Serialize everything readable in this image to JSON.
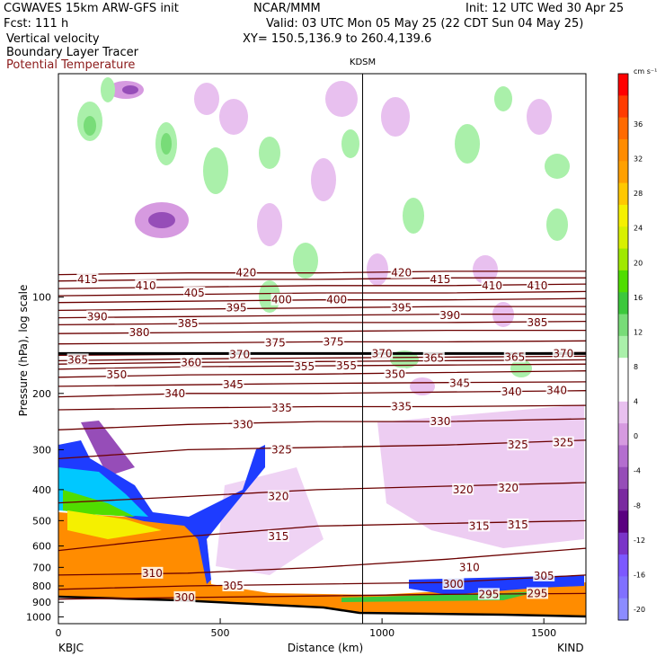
{
  "header": {
    "model": "CGWAVES 15km ARW-GFS init",
    "org": "NCAR/MMM",
    "init": "Init: 12 UTC Wed 30 Apr 25",
    "fcst": "Fcst:  111 h",
    "valid": "Valid: 03 UTC Mon 05 May 25 (22 CDT Sun 04 May 25)",
    "field1": "Vertical velocity",
    "field2": "Boundary Layer Tracer",
    "field3": "Potential Temperature",
    "xy": "XY= 150.5,136.9 to 260.4,139.6",
    "field3_color": "#8b1a1a"
  },
  "chart_data": {
    "type": "heatmap",
    "title": "",
    "xlabel": "Distance (km)",
    "ylabel": "Pressure (hPa), log scale",
    "xlim": [
      0,
      1630
    ],
    "ylim": [
      1050,
      20
    ],
    "x_ticks": [
      "0",
      "500",
      "1000",
      "1500"
    ],
    "x_tick_values": [
      0,
      500,
      1000,
      1500
    ],
    "y_ticks": [
      "100",
      "200",
      "300",
      "400",
      "500",
      "600",
      "700",
      "800",
      "900",
      "1000"
    ],
    "y_tick_values": [
      100,
      200,
      300,
      400,
      500,
      600,
      700,
      800,
      900,
      1000
    ],
    "station_left": "KBJC",
    "station_right": "KIND",
    "station_mid": "KDSM",
    "station_mid_x": 940,
    "colorbar": {
      "unit": "cm s⁻¹",
      "labels": [
        "36",
        "32",
        "28",
        "24",
        "20",
        "16",
        "12",
        "8",
        "4",
        "0",
        "-4",
        "-8",
        "-12",
        "-16",
        "-20"
      ],
      "colors": [
        "#ff0000",
        "#ff3c00",
        "#ff6a00",
        "#ff8c00",
        "#ffa000",
        "#ffc800",
        "#f5f000",
        "#d8f000",
        "#a0e800",
        "#50dd00",
        "#3cc83c",
        "#78dc78",
        "#aaf0aa",
        "#ffffff",
        "#ffffff",
        "#e8c0ef",
        "#d69ae0",
        "#b46ecf",
        "#964db8",
        "#7a2aa0",
        "#5a0080",
        "#7a34c8",
        "#7c58ff",
        "#8070ff",
        "#8c8cff"
      ]
    },
    "theta_contours": {
      "unit": "K",
      "levels": [
        {
          "value": 300,
          "p": [
            880,
            870,
            860,
            850,
            845
          ]
        },
        {
          "value": 305,
          "p": [
            820,
            800,
            790,
            780,
            740
          ]
        },
        {
          "value": 310,
          "p": [
            740,
            730,
            700,
            660,
            610
          ]
        },
        {
          "value": 315,
          "p": [
            620,
            560,
            520,
            510,
            500
          ]
        },
        {
          "value": 320,
          "p": [
            440,
            420,
            400,
            390,
            380
          ]
        },
        {
          "value": 325,
          "p": [
            320,
            300,
            295,
            290,
            280
          ]
        },
        {
          "value": 330,
          "p": [
            260,
            250,
            245,
            245,
            240
          ]
        },
        {
          "value": 335,
          "p": [
            225,
            222,
            220,
            220,
            218
          ]
        },
        {
          "value": 340,
          "p": [
            205,
            200,
            200,
            198,
            196
          ]
        },
        {
          "value": 345,
          "p": [
            190,
            188,
            186,
            185,
            184
          ]
        },
        {
          "value": 350,
          "p": [
            178,
            175,
            174,
            172,
            170
          ]
        },
        {
          "value": 355,
          "p": [
            168,
            165,
            164,
            163,
            162
          ]
        },
        {
          "value": 360,
          "p": [
            162,
            160,
            159,
            158,
            157
          ]
        },
        {
          "value": 365,
          "p": [
            158,
            156,
            155,
            154,
            153
          ]
        },
        {
          "value": 370,
          "p": [
            152,
            151,
            150,
            150,
            149
          ]
        },
        {
          "value": 375,
          "p": [
            140,
            139,
            138,
            138,
            137
          ]
        },
        {
          "value": 380,
          "p": [
            130,
            129,
            128,
            127,
            127
          ]
        },
        {
          "value": 385,
          "p": [
            122,
            121,
            120,
            120,
            119
          ]
        },
        {
          "value": 390,
          "p": [
            116,
            115,
            114,
            113,
            113
          ]
        },
        {
          "value": 395,
          "p": [
            110,
            109,
            108,
            107,
            107
          ]
        },
        {
          "value": 400,
          "p": [
            104,
            103,
            102,
            102,
            101
          ]
        },
        {
          "value": 405,
          "p": [
            99,
            98,
            97,
            97,
            96
          ]
        },
        {
          "value": 410,
          "p": [
            94,
            93,
            92,
            92,
            91
          ]
        },
        {
          "value": 415,
          "p": [
            89,
            88,
            88,
            87,
            87
          ]
        },
        {
          "value": 420,
          "p": [
            85,
            84,
            84,
            83,
            83
          ]
        }
      ],
      "x": [
        0,
        400,
        800,
        1200,
        1630
      ],
      "labels": [
        {
          "text": "415",
          "x": 90,
          "p": 88
        },
        {
          "text": "410",
          "x": 270,
          "p": 92
        },
        {
          "text": "405",
          "x": 420,
          "p": 97
        },
        {
          "text": "420",
          "x": 580,
          "p": 84
        },
        {
          "text": "400",
          "x": 690,
          "p": 102
        },
        {
          "text": "400",
          "x": 860,
          "p": 102
        },
        {
          "text": "395",
          "x": 550,
          "p": 108
        },
        {
          "text": "390",
          "x": 120,
          "p": 115
        },
        {
          "text": "380",
          "x": 250,
          "p": 129
        },
        {
          "text": "385",
          "x": 400,
          "p": 121
        },
        {
          "text": "375",
          "x": 670,
          "p": 139
        },
        {
          "text": "375",
          "x": 850,
          "p": 138
        },
        {
          "text": "370",
          "x": 560,
          "p": 151
        },
        {
          "text": "370",
          "x": 1000,
          "p": 150
        },
        {
          "text": "365",
          "x": 60,
          "p": 157
        },
        {
          "text": "360",
          "x": 410,
          "p": 160
        },
        {
          "text": "350",
          "x": 180,
          "p": 175
        },
        {
          "text": "340",
          "x": 360,
          "p": 200
        },
        {
          "text": "345",
          "x": 540,
          "p": 188
        },
        {
          "text": "355",
          "x": 760,
          "p": 165
        },
        {
          "text": "355",
          "x": 890,
          "p": 164
        },
        {
          "text": "330",
          "x": 570,
          "p": 250
        },
        {
          "text": "335",
          "x": 690,
          "p": 222
        },
        {
          "text": "325",
          "x": 690,
          "p": 300
        },
        {
          "text": "320",
          "x": 680,
          "p": 420
        },
        {
          "text": "315",
          "x": 680,
          "p": 560
        },
        {
          "text": "310",
          "x": 290,
          "p": 730
        },
        {
          "text": "305",
          "x": 540,
          "p": 800
        },
        {
          "text": "300",
          "x": 390,
          "p": 870
        },
        {
          "text": "420",
          "x": 1060,
          "p": 84
        },
        {
          "text": "415",
          "x": 1180,
          "p": 88
        },
        {
          "text": "410",
          "x": 1340,
          "p": 92
        },
        {
          "text": "410",
          "x": 1480,
          "p": 92
        },
        {
          "text": "395",
          "x": 1060,
          "p": 108
        },
        {
          "text": "390",
          "x": 1210,
          "p": 114
        },
        {
          "text": "385",
          "x": 1480,
          "p": 120
        },
        {
          "text": "365",
          "x": 1160,
          "p": 155
        },
        {
          "text": "365",
          "x": 1410,
          "p": 154
        },
        {
          "text": "370",
          "x": 1560,
          "p": 150
        },
        {
          "text": "350",
          "x": 1040,
          "p": 174
        },
        {
          "text": "345",
          "x": 1240,
          "p": 186
        },
        {
          "text": "340",
          "x": 1400,
          "p": 198
        },
        {
          "text": "340",
          "x": 1540,
          "p": 196
        },
        {
          "text": "335",
          "x": 1060,
          "p": 220
        },
        {
          "text": "330",
          "x": 1180,
          "p": 245
        },
        {
          "text": "325",
          "x": 1420,
          "p": 290
        },
        {
          "text": "325",
          "x": 1560,
          "p": 285
        },
        {
          "text": "320",
          "x": 1250,
          "p": 400
        },
        {
          "text": "320",
          "x": 1390,
          "p": 395
        },
        {
          "text": "315",
          "x": 1300,
          "p": 520
        },
        {
          "text": "315",
          "x": 1420,
          "p": 515
        },
        {
          "text": "310",
          "x": 1270,
          "p": 700
        },
        {
          "text": "305",
          "x": 1500,
          "p": 745
        },
        {
          "text": "300",
          "x": 1220,
          "p": 790
        },
        {
          "text": "295",
          "x": 1330,
          "p": 850
        },
        {
          "text": "295",
          "x": 1480,
          "p": 845
        }
      ]
    },
    "tropopause_p": 150
  }
}
